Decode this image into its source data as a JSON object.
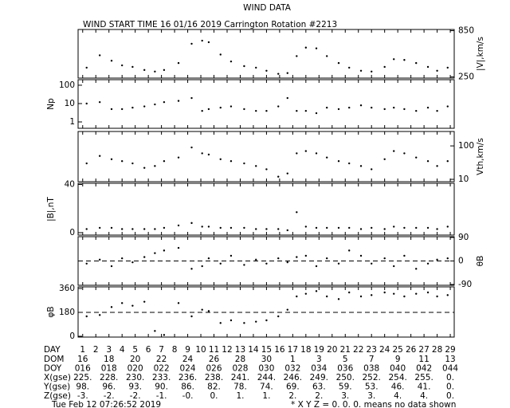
{
  "title": "WIND DATA",
  "subtitle": "WIND START TIME  16 01/16 2019 Carrington Rotation #2213",
  "chart_data": [
    {
      "type": "scatter",
      "label": "|V|,km/s",
      "side": "right",
      "log": false,
      "xlim": [
        0.65,
        29.3
      ],
      "ylim": [
        235,
        865
      ],
      "yticks": [
        250,
        850
      ],
      "x": [
        1.3,
        2.3,
        3.2,
        4.0,
        4.8,
        5.7,
        6.5,
        7.2,
        8.3,
        9.3,
        10.1,
        10.6,
        11.5,
        12.3,
        13.3,
        14.2,
        15.0,
        15.9,
        16.6,
        17.3,
        18.0,
        18.8,
        19.6,
        20.5,
        21.3,
        22.2,
        23.0,
        24.0,
        24.7,
        25.5,
        26.4,
        27.3,
        28.0,
        28.8
      ],
      "values": [
        370,
        530,
        460,
        400,
        380,
        340,
        320,
        340,
        430,
        680,
        720,
        700,
        540,
        450,
        390,
        370,
        330,
        290,
        300,
        520,
        630,
        620,
        520,
        430,
        370,
        330,
        320,
        380,
        480,
        470,
        430,
        380,
        330,
        370
      ]
    },
    {
      "type": "scatter",
      "label": "Np",
      "side": "left",
      "log": true,
      "xlim": [
        0.65,
        29.3
      ],
      "ylim": [
        0.45,
        200
      ],
      "yticks": [
        1,
        10,
        100
      ],
      "x": [
        1.3,
        2.3,
        3.2,
        4.0,
        4.8,
        5.7,
        6.5,
        7.2,
        8.3,
        9.3,
        10.1,
        10.6,
        11.5,
        12.3,
        13.3,
        14.2,
        15.0,
        15.9,
        16.6,
        17.3,
        18.0,
        18.8,
        19.6,
        20.5,
        21.3,
        22.2,
        23.0,
        24.0,
        24.7,
        25.5,
        26.4,
        27.3,
        28.0,
        28.8
      ],
      "values": [
        10,
        12,
        5,
        5,
        6,
        7,
        9,
        12,
        14,
        20,
        4,
        5,
        6,
        7,
        5,
        4,
        4,
        7,
        20,
        4,
        4,
        3,
        6,
        5,
        6,
        8,
        6,
        5,
        6,
        5,
        4,
        6,
        4,
        7
      ]
    },
    {
      "type": "scatter",
      "label": "Vth,km/s",
      "side": "right",
      "log": true,
      "xlim": [
        0.65,
        29.3
      ],
      "ylim": [
        8.5,
        270
      ],
      "yticks": [
        10,
        100
      ],
      "x": [
        1.3,
        2.3,
        3.2,
        4.0,
        4.8,
        5.7,
        6.5,
        7.2,
        8.3,
        9.3,
        10.1,
        10.6,
        11.5,
        12.3,
        13.3,
        14.2,
        15.0,
        15.9,
        16.6,
        17.3,
        18.0,
        18.8,
        19.6,
        20.5,
        21.3,
        22.2,
        23.0,
        24.0,
        24.7,
        25.5,
        26.4,
        27.3,
        28.0,
        28.8
      ],
      "values": [
        30,
        50,
        40,
        35,
        30,
        22,
        25,
        35,
        45,
        90,
        60,
        55,
        40,
        35,
        30,
        25,
        20,
        12,
        15,
        60,
        70,
        60,
        45,
        35,
        30,
        25,
        20,
        40,
        70,
        60,
        45,
        35,
        25,
        35
      ]
    },
    {
      "type": "scatter",
      "label": "|B|,nT",
      "side": "left",
      "log": false,
      "xlim": [
        0.65,
        29.3
      ],
      "ylim": [
        -2,
        41
      ],
      "yticks": [
        0,
        40
      ],
      "x": [
        1.3,
        2.3,
        3.2,
        4.0,
        4.8,
        5.7,
        6.5,
        7.2,
        8.3,
        9.3,
        10.1,
        10.6,
        11.5,
        12.3,
        13.3,
        14.2,
        15.0,
        15.9,
        16.6,
        17.3,
        18.0,
        18.8,
        19.6,
        20.5,
        21.3,
        22.2,
        23.0,
        24.0,
        24.7,
        25.5,
        26.4,
        27.3,
        28.0,
        28.8
      ],
      "values": [
        3,
        4,
        4,
        3,
        3,
        3,
        3,
        4,
        6,
        8,
        5,
        5,
        4,
        4,
        4,
        3,
        3,
        3,
        2,
        17,
        5,
        4,
        4,
        4,
        4,
        3,
        4,
        3,
        5,
        4,
        4,
        4,
        3,
        5
      ]
    },
    {
      "type": "scatter",
      "label": "θB",
      "side": "right",
      "log": false,
      "ref_line": 0,
      "xlim": [
        0.65,
        29.3
      ],
      "ylim": [
        -93,
        93
      ],
      "yticks": [
        -90,
        0,
        90
      ],
      "x": [
        1.3,
        2.3,
        3.2,
        4.0,
        4.8,
        5.7,
        6.5,
        7.2,
        8.3,
        9.3,
        10.1,
        10.6,
        11.5,
        12.3,
        13.3,
        14.2,
        15.0,
        15.9,
        16.6,
        17.3,
        18.0,
        18.8,
        19.6,
        20.5,
        21.3,
        22.2,
        23.0,
        24.0,
        24.7,
        25.5,
        26.4,
        27.3,
        28.0,
        28.8
      ],
      "values": [
        -10,
        5,
        -20,
        10,
        -5,
        15,
        30,
        40,
        50,
        -30,
        -20,
        10,
        -10,
        20,
        -15,
        5,
        -10,
        10,
        -5,
        15,
        20,
        -20,
        10,
        -10,
        40,
        20,
        -10,
        10,
        -20,
        20,
        -30,
        -10,
        5,
        10
      ]
    },
    {
      "type": "scatter",
      "label": "φB",
      "side": "left",
      "log": false,
      "ref_line": 180,
      "xlim": [
        0.65,
        29.3
      ],
      "ylim": [
        -6,
        372
      ],
      "yticks": [
        0,
        180,
        360
      ],
      "xticks": [
        1,
        2,
        3,
        4,
        5,
        6,
        7,
        8,
        9,
        10,
        11,
        12,
        13,
        14,
        15,
        16,
        17,
        18,
        19,
        20,
        21,
        22,
        23,
        24,
        25,
        26,
        27,
        28,
        29
      ],
      "x": [
        1.3,
        2.3,
        3.2,
        4.0,
        4.8,
        5.7,
        6.5,
        7.2,
        8.3,
        9.3,
        10.1,
        10.6,
        11.5,
        12.3,
        13.3,
        14.2,
        15.0,
        15.9,
        16.6,
        17.3,
        18.0,
        18.8,
        19.6,
        20.5,
        21.3,
        22.2,
        23.0,
        24.0,
        24.7,
        25.5,
        26.4,
        27.3,
        28.0,
        28.8
      ],
      "values": [
        150,
        160,
        220,
        250,
        230,
        260,
        40,
        10,
        250,
        150,
        200,
        190,
        100,
        120,
        100,
        110,
        120,
        150,
        200,
        300,
        320,
        340,
        300,
        280,
        330,
        300,
        310,
        330,
        320,
        300,
        320,
        330,
        300,
        310
      ]
    }
  ],
  "x_label": "DAY",
  "table": {
    "rows": [
      {
        "label": "DOM",
        "cells": [
          "16",
          "18",
          "20",
          "22",
          "24",
          "26",
          "28",
          "30",
          "1",
          "3",
          "5",
          "7",
          "9",
          "11",
          "13"
        ]
      },
      {
        "label": "DOY",
        "cells": [
          "016",
          "018",
          "020",
          "022",
          "024",
          "026",
          "028",
          "030",
          "032",
          "034",
          "036",
          "038",
          "040",
          "042",
          "044"
        ]
      },
      {
        "label": "X(gse)",
        "cells": [
          "225.",
          "228.",
          "230.",
          "233.",
          "236.",
          "238.",
          "241.",
          "244.",
          "246.",
          "249.",
          "250.",
          "252.",
          "254.",
          "255.",
          "0."
        ]
      },
      {
        "label": "Y(gse)",
        "cells": [
          "98.",
          "96.",
          "93.",
          "90.",
          "86.",
          "82.",
          "78.",
          "74.",
          "69.",
          "63.",
          "59.",
          "53.",
          "46.",
          "41.",
          "0."
        ]
      },
      {
        "label": "Z(gse)",
        "cells": [
          "-3.",
          "-2.",
          "-2.",
          "-1.",
          "-0.",
          "0.",
          "1.",
          "1.",
          "2.",
          "2.",
          "3.",
          "3.",
          "4.",
          "4.",
          "0."
        ]
      }
    ]
  },
  "footer": {
    "date": "Tue Feb 12 07:26:52 2019",
    "note": "* X Y Z = 0. 0. 0. means no data shown"
  }
}
